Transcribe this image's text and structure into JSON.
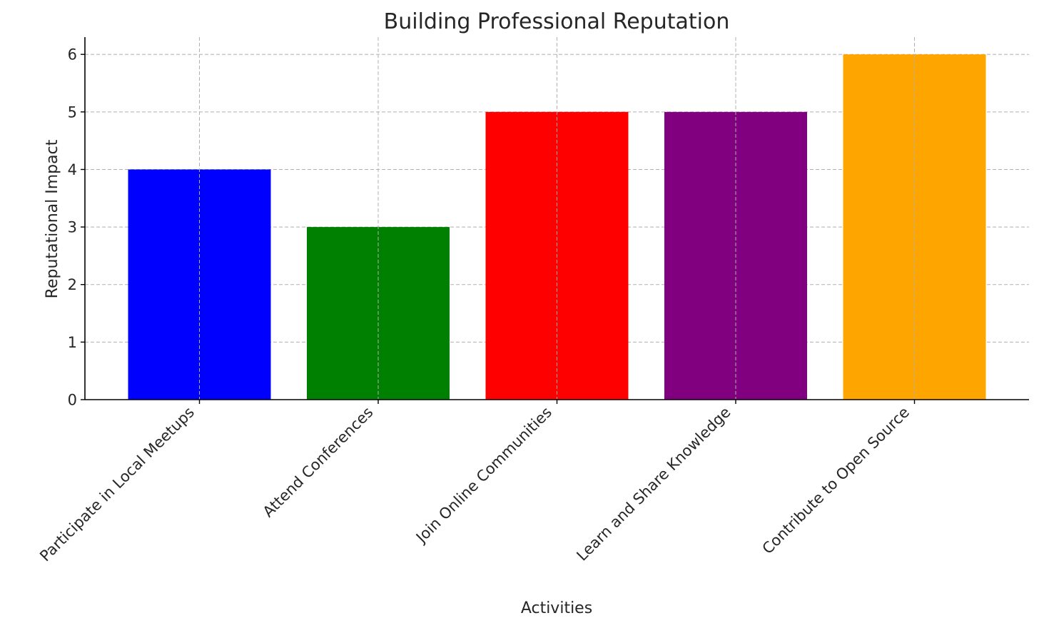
{
  "chart_data": {
    "type": "bar",
    "title": "Building Professional Reputation",
    "xlabel": "Activities",
    "ylabel": "Reputational Impact",
    "categories": [
      "Participate in Local Meetups",
      "Attend Conferences",
      "Join Online Communities",
      "Learn and Share Knowledge",
      "Contribute to Open Source"
    ],
    "values": [
      4,
      3,
      5,
      5,
      6
    ],
    "colors": [
      "#0000ff",
      "#008000",
      "#ff0000",
      "#800080",
      "#ffa500"
    ],
    "ylim": [
      0,
      6.3
    ],
    "yticks": [
      0,
      1,
      2,
      3,
      4,
      5,
      6
    ],
    "grid": true,
    "legend": "none"
  }
}
